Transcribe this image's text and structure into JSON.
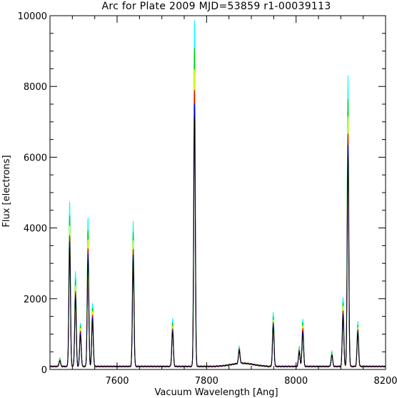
{
  "chart_data": {
    "type": "line",
    "title": "Arc for Plate 2009   MJD=53859   r1-00039113",
    "xlabel": "Vacuum Wavelength [Ang]",
    "ylabel": "Flux [electrons]",
    "xlim": [
      7450,
      8200
    ],
    "ylim": [
      0,
      10000
    ],
    "xticks": [
      7600,
      7800,
      8000,
      8200
    ],
    "yticks": [
      0,
      2000,
      4000,
      6000,
      8000,
      10000
    ],
    "grid": false,
    "legend": "none",
    "baseline": 100,
    "series_colors": [
      "#00ffff",
      "#00cc00",
      "#ffff00",
      "#ff0000",
      "#0000ff",
      "#000000"
    ],
    "series_scales": [
      1.0,
      0.92,
      0.86,
      0.8,
      0.76,
      0.72
    ],
    "peaks": [
      {
        "x": 7472,
        "y": 330
      },
      {
        "x": 7494,
        "y": 4780
      },
      {
        "x": 7507,
        "y": 2780
      },
      {
        "x": 7518,
        "y": 1350
      },
      {
        "x": 7535,
        "y": 4320
      },
      {
        "x": 7545,
        "y": 1920
      },
      {
        "x": 7636,
        "y": 4230
      },
      {
        "x": 7724,
        "y": 1460
      },
      {
        "x": 7773,
        "y": 9950
      },
      {
        "x": 7873,
        "y": 600
      },
      {
        "x": 7949,
        "y": 1660
      },
      {
        "x": 8007,
        "y": 680
      },
      {
        "x": 8015,
        "y": 1450
      },
      {
        "x": 8080,
        "y": 530
      },
      {
        "x": 8105,
        "y": 2080
      },
      {
        "x": 8116,
        "y": 8330
      },
      {
        "x": 8138,
        "y": 1400
      }
    ]
  }
}
